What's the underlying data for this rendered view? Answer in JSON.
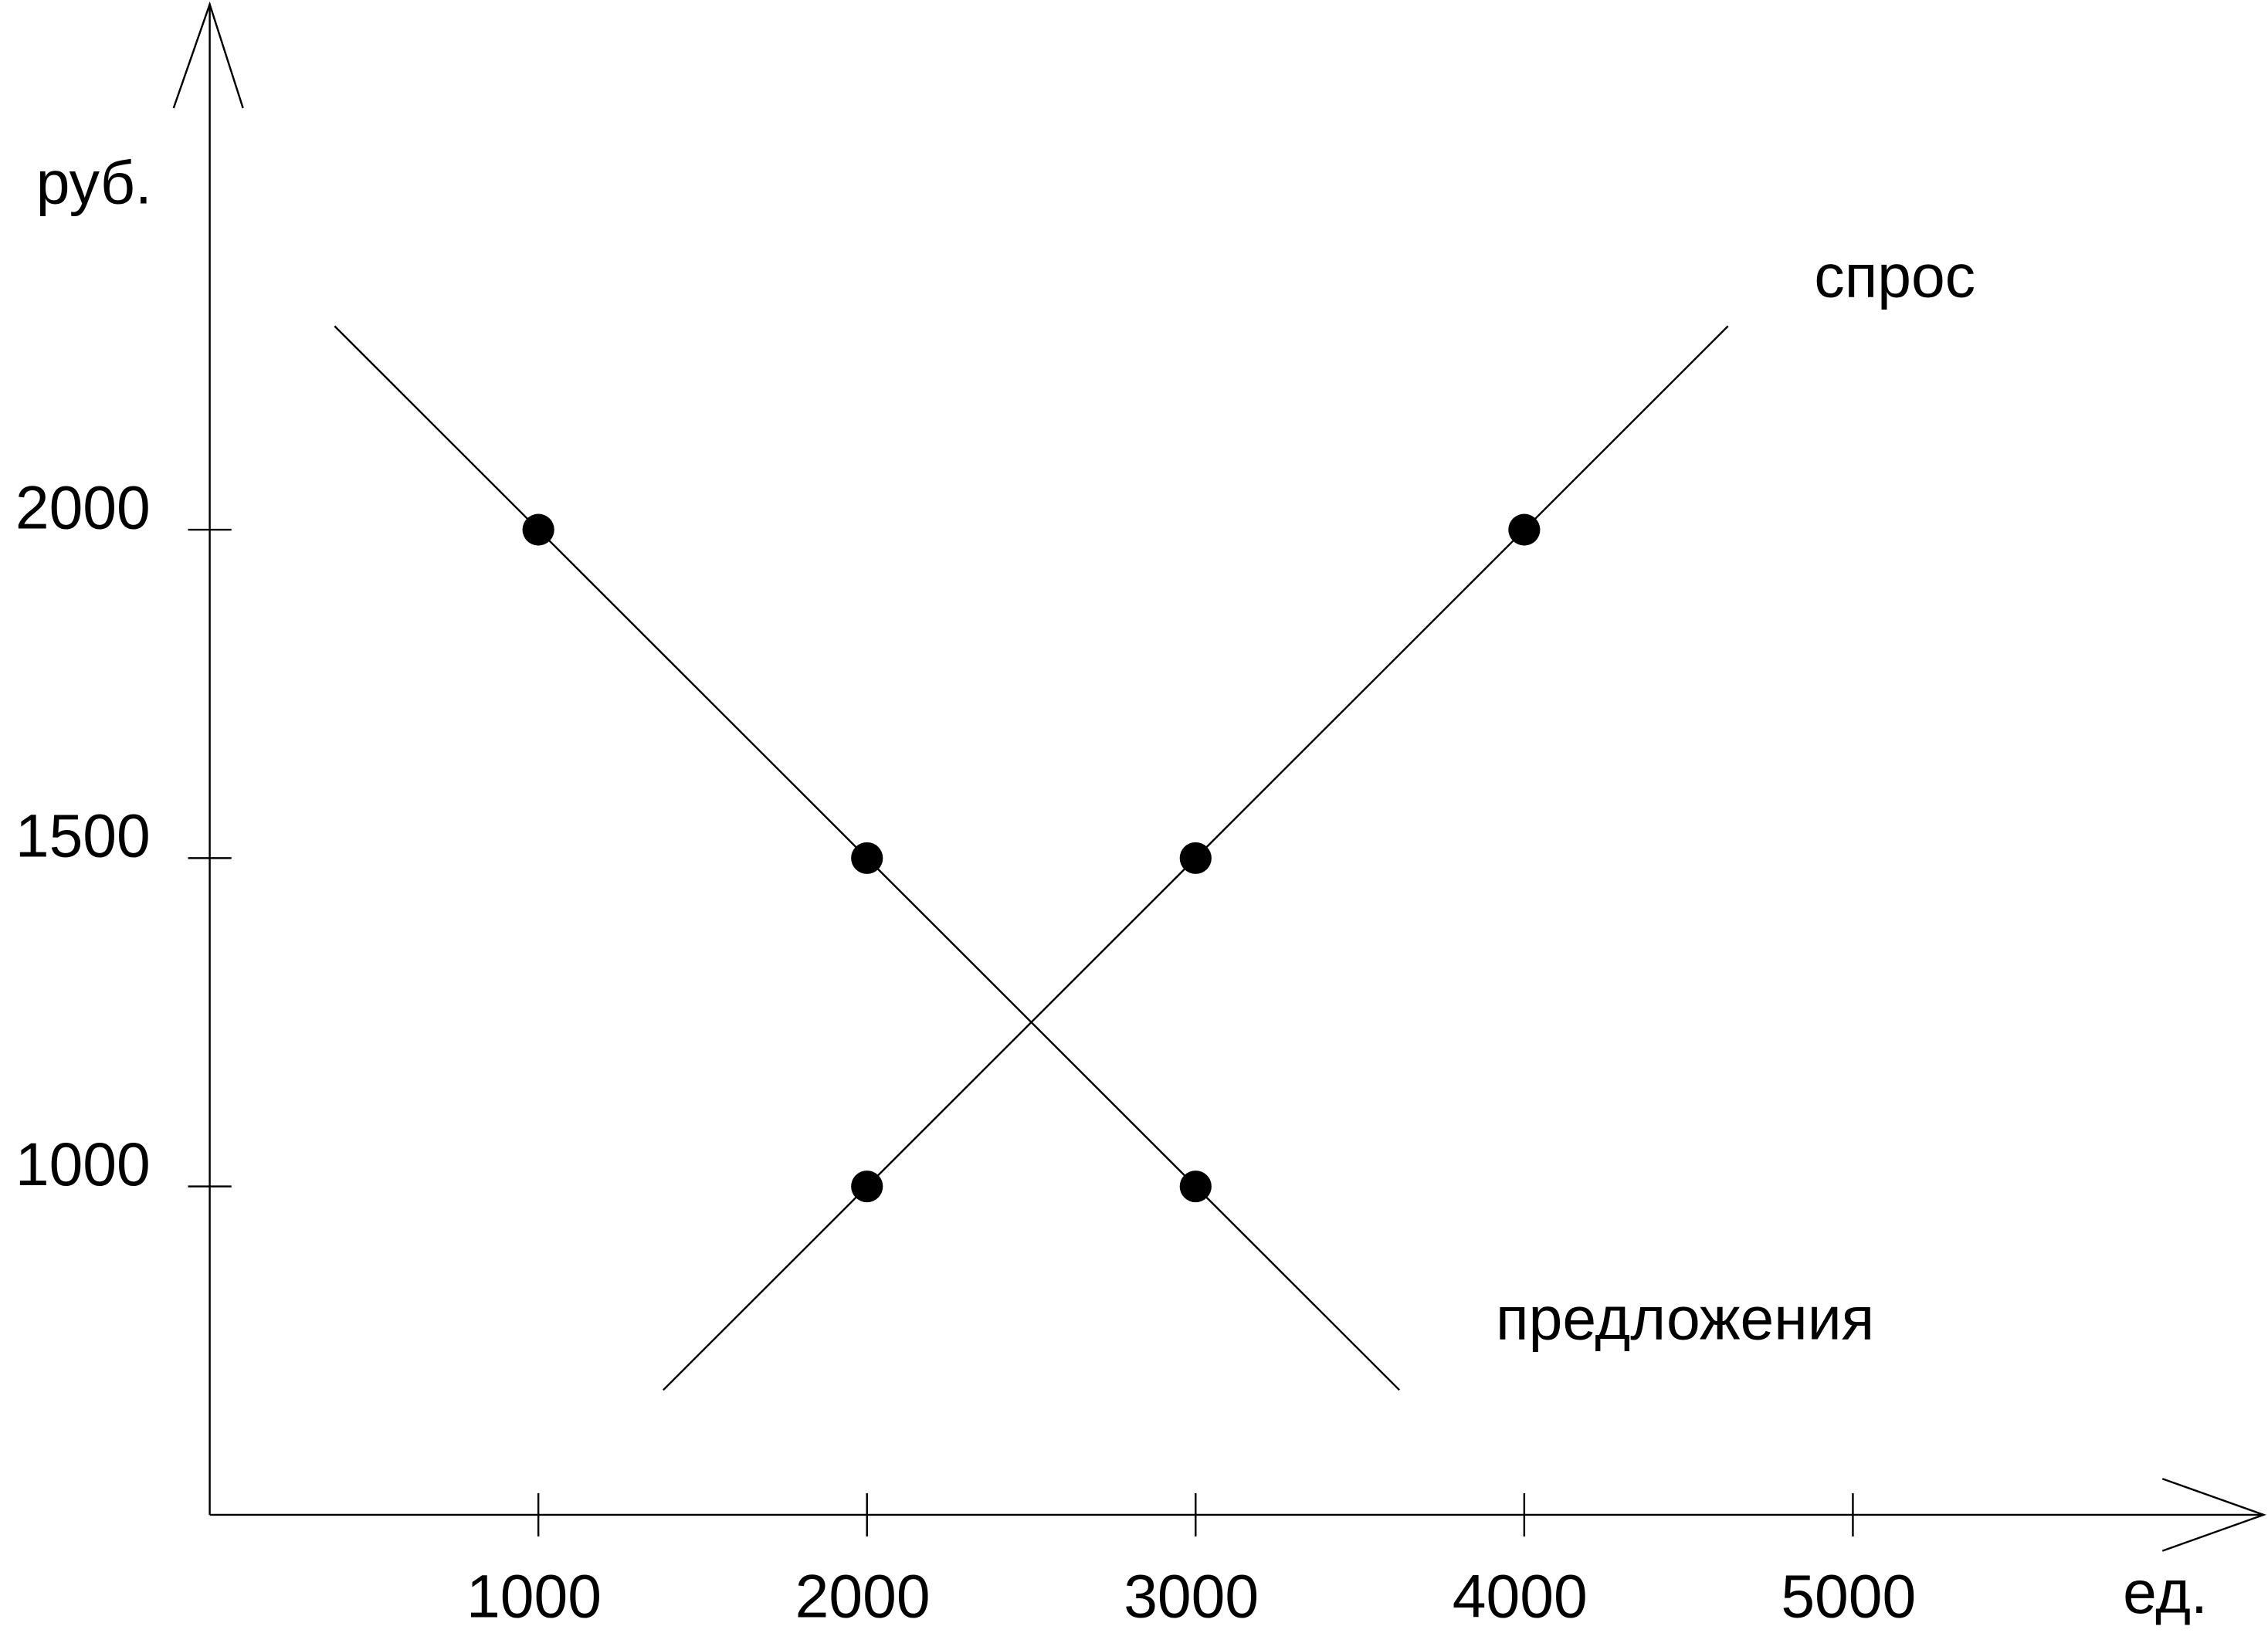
{
  "chart_data": {
    "type": "line",
    "x_label": "ед.",
    "y_label": "руб.",
    "xlim": [
      0,
      6250
    ],
    "ylim": [
      500,
      2800
    ],
    "xticks": [
      1000,
      2000,
      3000,
      4000,
      5000
    ],
    "yticks": [
      1000,
      1500,
      2000
    ],
    "series": [
      {
        "name": "предложения",
        "color": "#000000",
        "x": [
          1000,
          2000,
          3000
        ],
        "values": [
          2000,
          1500,
          1000
        ]
      },
      {
        "name": "спрос",
        "color": "#000000",
        "x": [
          2000,
          3000,
          4000
        ],
        "values": [
          1000,
          1500,
          2000
        ]
      }
    ]
  }
}
